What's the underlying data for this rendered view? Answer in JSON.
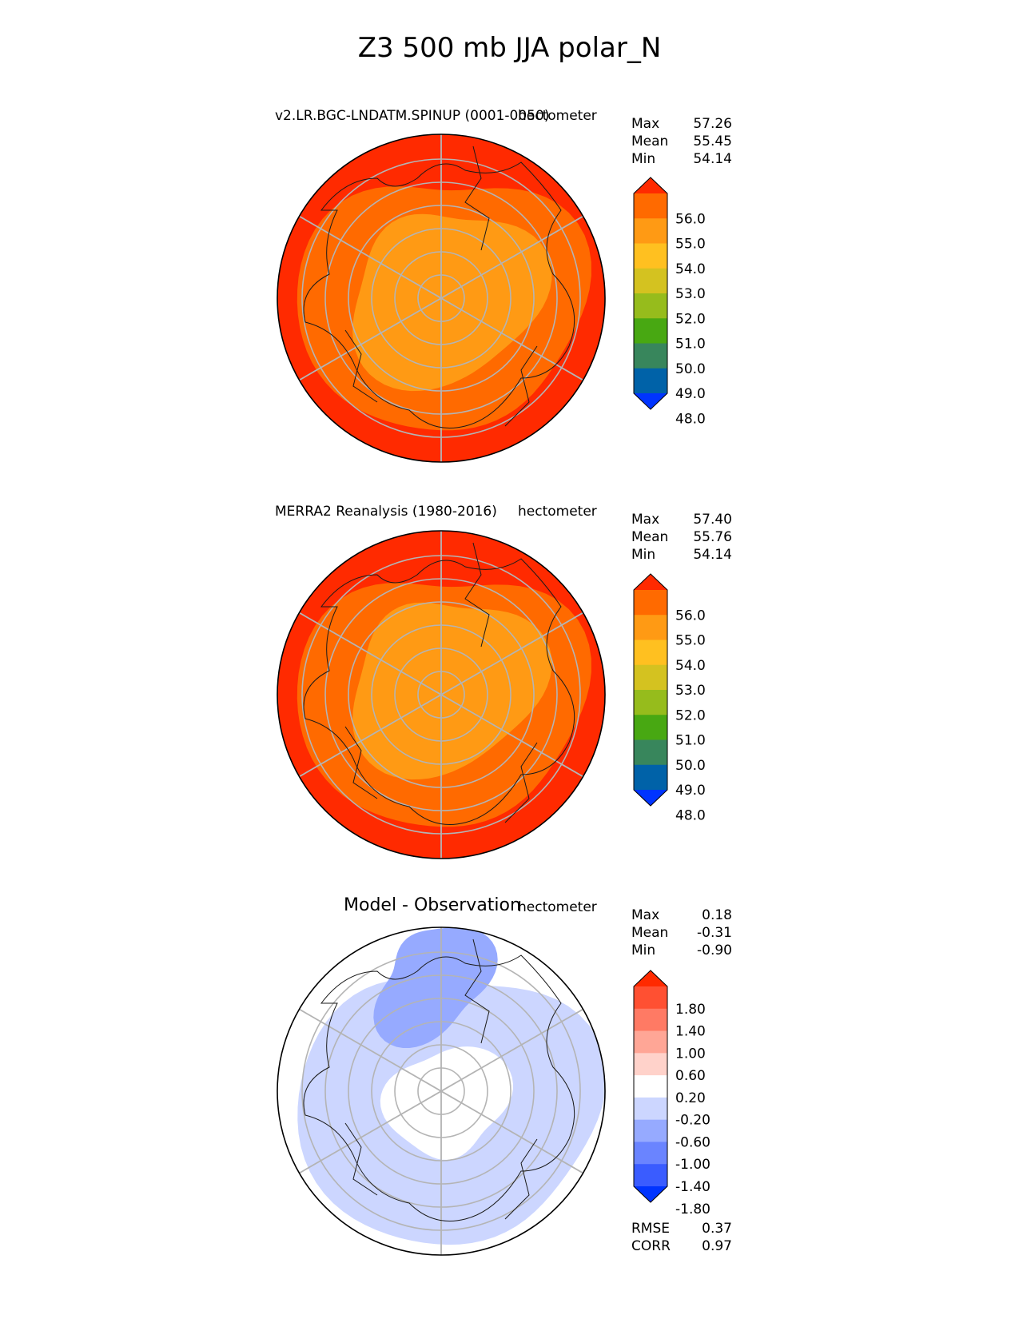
{
  "title": "Z3 500 mb JJA polar_N",
  "panels": [
    {
      "id": "test",
      "title": "v2.LR.BGC-LNDATM.SPINUP (0001-0050)",
      "units": "hectometer",
      "stats": [
        {
          "label": "Max",
          "value": "57.26"
        },
        {
          "label": "Mean",
          "value": "55.45"
        },
        {
          "label": "Min",
          "value": "54.14"
        }
      ],
      "colorbar": {
        "labels": [
          "56.0",
          "55.0",
          "54.0",
          "53.0",
          "52.0",
          "51.0",
          "50.0",
          "49.0",
          "48.0"
        ],
        "colors": [
          "#ff2a00",
          "#ff6a00",
          "#ff9a14",
          "#ffc020",
          "#d4c220",
          "#96bc1c",
          "#48a812",
          "#38865c",
          "#0062a8",
          "#0034ff"
        ]
      },
      "field": {
        "inner": "#ff9a14",
        "middle": "#ff6a00",
        "outer": "#ff2a00"
      }
    },
    {
      "id": "reference",
      "title": "MERRA2 Reanalysis (1980-2016)",
      "units": "hectometer",
      "stats": [
        {
          "label": "Max",
          "value": "57.40"
        },
        {
          "label": "Mean",
          "value": "55.76"
        },
        {
          "label": "Min",
          "value": "54.14"
        }
      ],
      "colorbar": {
        "labels": [
          "56.0",
          "55.0",
          "54.0",
          "53.0",
          "52.0",
          "51.0",
          "50.0",
          "49.0",
          "48.0"
        ],
        "colors": [
          "#ff2a00",
          "#ff6a00",
          "#ff9a14",
          "#ffc020",
          "#d4c220",
          "#96bc1c",
          "#48a812",
          "#38865c",
          "#0062a8",
          "#0034ff"
        ]
      },
      "field": {
        "inner": "#ff9a14",
        "middle": "#ff6a00",
        "outer": "#ff2a00"
      }
    },
    {
      "id": "diff",
      "title": "Model - Observation",
      "units": "hectometer",
      "stats": [
        {
          "label": "Max",
          "value": "0.18"
        },
        {
          "label": "Mean",
          "value": "-0.31"
        },
        {
          "label": "Min",
          "value": "-0.90"
        }
      ],
      "colorbar": {
        "labels": [
          "1.80",
          "1.40",
          "1.00",
          "0.60",
          "0.20",
          "-0.20",
          "-0.60",
          "-1.00",
          "-1.40",
          "-1.80"
        ],
        "colors": [
          "#ff2a00",
          "#ff5032",
          "#ff7a64",
          "#ffa696",
          "#ffd2ca",
          "#ffffff",
          "#ccd6ff",
          "#96aaff",
          "#6a84ff",
          "#3a5cff",
          "#0034ff"
        ]
      },
      "field": {
        "inner": "#ffffff",
        "middle": "#ccd6ff",
        "outer": "#96aaff"
      },
      "extra_stats": [
        {
          "label": "RMSE",
          "value": "0.37"
        },
        {
          "label": "CORR",
          "value": "0.97"
        }
      ]
    }
  ],
  "chart_data": {
    "type": "heatmap",
    "title": "Z3 500 mb JJA polar_N",
    "variable": "Z3",
    "level": "500 mb",
    "season": "JJA",
    "region": "polar_N",
    "units": "hectometer",
    "panels": [
      {
        "title": "v2.LR.BGC-LNDATM.SPINUP (0001-0050)",
        "max": 57.26,
        "mean": 55.45,
        "min": 54.14,
        "contour_levels": [
          48.0,
          49.0,
          50.0,
          51.0,
          52.0,
          53.0,
          54.0,
          55.0,
          56.0
        ]
      },
      {
        "title": "MERRA2 Reanalysis (1980-2016)",
        "max": 57.4,
        "mean": 55.76,
        "min": 54.14,
        "contour_levels": [
          48.0,
          49.0,
          50.0,
          51.0,
          52.0,
          53.0,
          54.0,
          55.0,
          56.0
        ]
      },
      {
        "title": "Model - Observation",
        "max": 0.18,
        "mean": -0.31,
        "min": -0.9,
        "rmse": 0.37,
        "corr": 0.97,
        "contour_levels": [
          -1.8,
          -1.4,
          -1.0,
          -0.6,
          -0.2,
          0.2,
          0.6,
          1.0,
          1.4,
          1.8
        ]
      }
    ]
  }
}
